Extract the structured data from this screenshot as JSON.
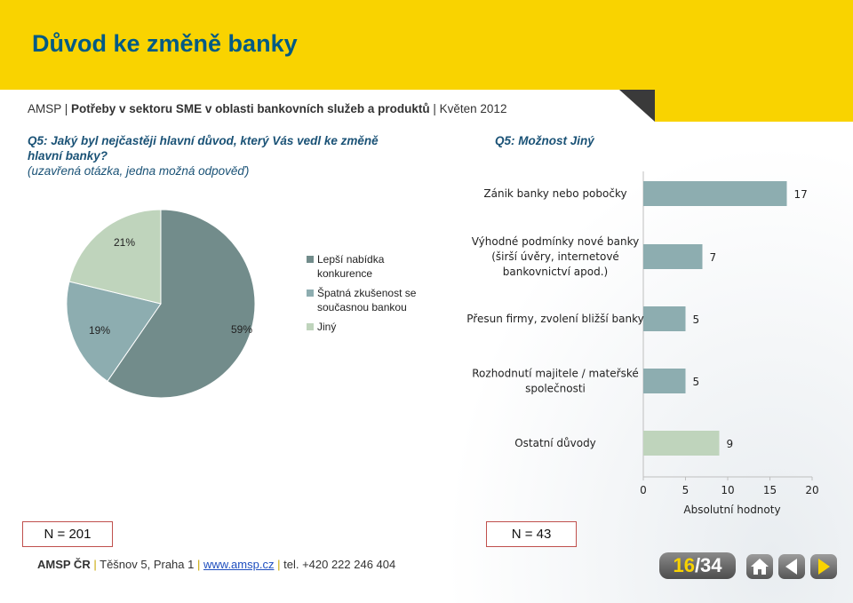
{
  "page": {
    "title": "Důvod ke změně banky",
    "subtitle_prefix": "AMSP | ",
    "subtitle_bold": "Potřeby v sektoru SME v oblasti bankovních služeb a produktů",
    "subtitle_suffix": " | Květen 2012",
    "question_left": "Q5: Jaký byl nejčastěji hlavní důvod, který Vás vedl ke změně hlavní banky?",
    "question_left_note": "(uzavřená otázka, jedna možná odpověď)",
    "question_right": "Q5: Možnost Jiný",
    "n_left": "N = 201",
    "n_right": "N = 43",
    "footer": {
      "brand": "AMSP ČR",
      "sep": "|",
      "address": "Těšnov 5, Praha 1",
      "web": "www.amsp.cz",
      "phone": "tel. +420 222 246 404"
    },
    "page_number_current": "16",
    "page_number_total": "/34"
  },
  "colors": {
    "header": "#f9d300",
    "title": "#005a85",
    "pie": [
      "#728c8b",
      "#8dadb0",
      "#bfd4bc"
    ],
    "bars": [
      "#8dadb0",
      "#8dadb0",
      "#8dadb0",
      "#8dadb0",
      "#bfd4bc"
    ]
  },
  "icons": [
    "home-icon",
    "back-arrow-icon",
    "forward-arrow-icon"
  ],
  "chart_data": [
    {
      "type": "pie",
      "categories": [
        "Lepší nabídka konkurence",
        "Špatná zkušenost se současnou bankou",
        "Jiný"
      ],
      "values": [
        59,
        19,
        21
      ],
      "labels": [
        "59%",
        "19%",
        "21%"
      ],
      "legend_position": "right"
    },
    {
      "type": "bar",
      "orientation": "horizontal",
      "categories": [
        "Zánik banky nebo pobočky",
        "Výhodné podmínky nové banky (širší úvěry, internetové bankovnictví apod.)",
        "Přesun firmy, zvolení bližší banky",
        "Rozhodnutí majitele / mateřské společnosti",
        "Ostatní důvody"
      ],
      "values": [
        17,
        7,
        5,
        5,
        9
      ],
      "xlabel": "Absolutní hodnoty",
      "xlim": [
        0,
        20
      ],
      "xticks": [
        "0",
        "5",
        "10",
        "15",
        "20"
      ],
      "grid": false
    }
  ]
}
